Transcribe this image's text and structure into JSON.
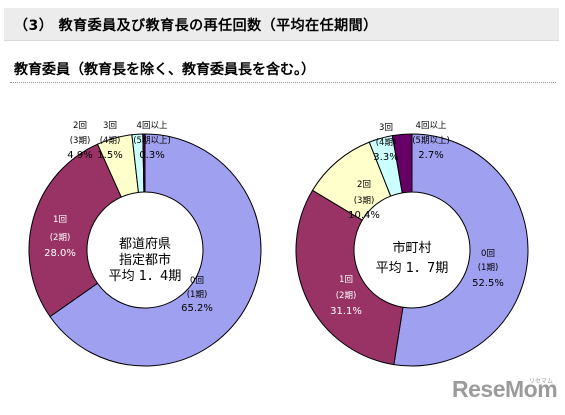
{
  "header": {
    "title": "（3） 教育委員及び教育長の再任回数（平均在任期間）"
  },
  "subtitle": "教育委員（教育長を除く、教育委員長を含む。）",
  "watermark": {
    "text": "ReseMom",
    "small": "リセマム"
  },
  "chart_data": [
    {
      "type": "pie",
      "center_label": [
        "都道府県",
        "指定都市",
        "平均 1．4期"
      ],
      "slices": [
        {
          "line1": "0回",
          "line2": "(1期)",
          "pct": "65.2%",
          "value": 65.2,
          "color": "#a0a0f0"
        },
        {
          "line1": "1回",
          "line2": "(2期)",
          "pct": "28.0%",
          "value": 28.0,
          "color": "#993366"
        },
        {
          "line1": "2回",
          "line2": "(3期)",
          "pct": "4.9%",
          "value": 4.9,
          "color": "#ffffcc"
        },
        {
          "line1": "3回",
          "line2": "(4期)",
          "pct": "1.5%",
          "value": 1.5,
          "color": "#ccffff"
        },
        {
          "line1": "4回以上",
          "line2": "(5期以上)",
          "pct": "0.3%",
          "value": 0.3,
          "color": "#660066"
        }
      ]
    },
    {
      "type": "pie",
      "center_label": [
        "市町村",
        "平均 1．7期"
      ],
      "slices": [
        {
          "line1": "0回",
          "line2": "(1期)",
          "pct": "52.5%",
          "value": 52.5,
          "color": "#a0a0f0"
        },
        {
          "line1": "1回",
          "line2": "(2期)",
          "pct": "31.1%",
          "value": 31.1,
          "color": "#993366"
        },
        {
          "line1": "2回",
          "line2": "(3期)",
          "pct": "10.4%",
          "value": 10.4,
          "color": "#ffffcc"
        },
        {
          "line1": "3回",
          "line2": "(4期)",
          "pct": "3.3%",
          "value": 3.3,
          "color": "#ccffff"
        },
        {
          "line1": "4回以上",
          "line2": "(5期以上)",
          "pct": "2.7%",
          "value": 2.7,
          "color": "#660066"
        }
      ]
    }
  ]
}
